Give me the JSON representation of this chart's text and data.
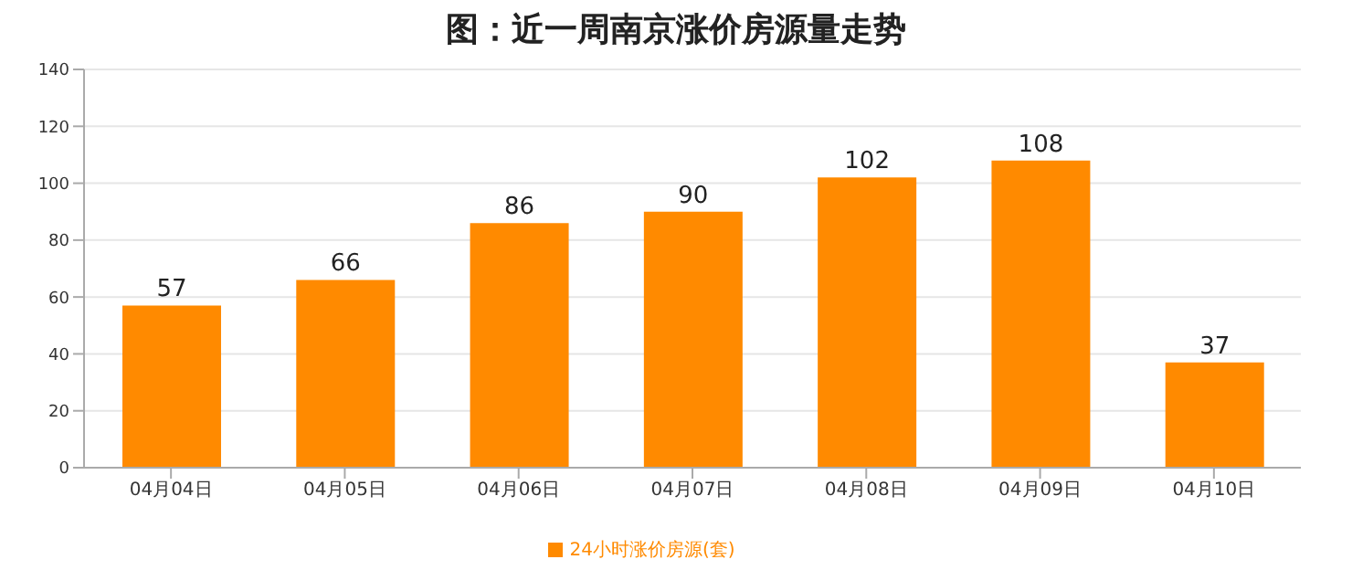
{
  "chart_data": {
    "type": "bar",
    "title": "图：近一周南京涨价房源量走势",
    "categories": [
      "04月04日",
      "04月05日",
      "04月06日",
      "04月07日",
      "04月08日",
      "04月09日",
      "04月10日"
    ],
    "series": [
      {
        "name": "24小时涨价房源(套)",
        "color": "#ff8a00",
        "values": [
          57,
          66,
          86,
          90,
          102,
          108,
          37
        ]
      }
    ],
    "ylim": [
      0,
      140
    ],
    "yticks": [
      0,
      20,
      40,
      60,
      80,
      100,
      120,
      140
    ],
    "grid": "y",
    "legend": "bottom",
    "data_labels": true
  }
}
